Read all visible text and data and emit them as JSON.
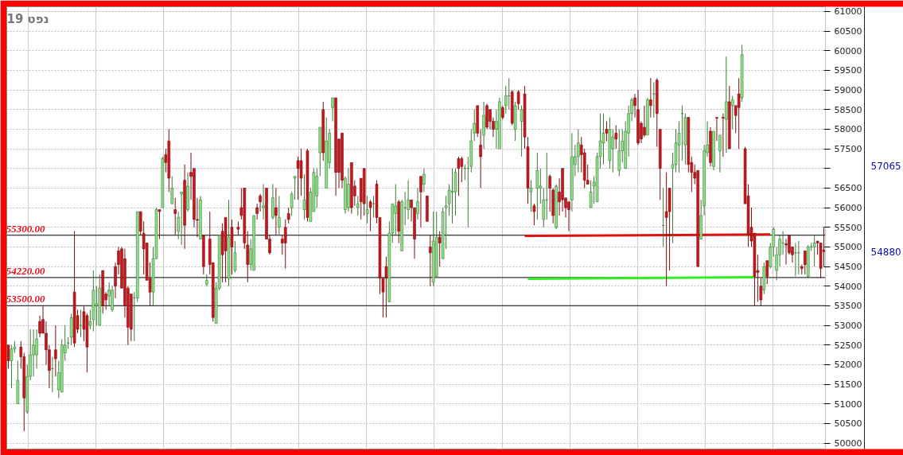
{
  "chart_data": {
    "type": "candlestick",
    "title": "19 נפט",
    "categories": [
      null,
      null,
      null,
      null,
      null,
      null,
      null,
      null,
      null,
      null,
      null,
      null,
      null,
      null,
      null,
      null,
      null,
      null,
      null,
      null,
      null,
      null,
      null,
      null,
      null,
      null,
      null,
      null,
      null,
      null,
      null,
      null,
      null,
      null,
      null,
      null,
      null,
      null,
      null,
      null,
      null,
      null,
      null,
      null,
      null,
      null,
      null,
      null,
      null,
      null,
      null,
      null,
      null,
      null,
      null,
      null,
      null,
      null,
      null,
      null,
      null,
      null,
      null,
      null,
      null,
      null,
      null,
      null,
      null,
      null,
      null,
      null,
      null,
      null,
      null,
      null,
      null,
      null,
      null,
      null,
      null,
      null,
      null,
      null,
      null,
      null,
      null,
      null,
      null,
      null,
      null,
      null,
      null,
      null,
      null,
      null,
      null,
      null,
      null,
      null,
      null,
      null,
      null,
      null,
      null,
      null,
      null,
      null,
      null,
      null,
      null,
      null,
      null,
      null,
      null,
      null,
      null,
      null,
      null,
      null,
      null,
      null,
      null,
      null,
      null,
      null,
      null,
      null,
      null,
      null,
      null,
      null,
      null,
      null,
      null,
      null,
      null,
      null,
      null,
      null,
      null,
      null,
      null,
      null,
      null,
      null,
      null,
      null,
      null,
      null,
      null,
      null,
      null,
      null,
      null,
      null,
      null,
      null,
      null,
      null,
      null,
      null,
      null,
      null,
      null,
      null,
      null,
      null,
      null,
      null,
      null,
      null,
      null,
      null,
      null,
      null,
      null,
      null,
      null,
      null,
      null,
      null,
      null,
      null,
      null,
      null,
      null,
      null,
      null,
      null,
      null,
      null,
      null,
      null,
      null,
      null,
      null,
      null,
      null,
      null,
      null,
      null,
      null,
      null,
      null,
      null,
      null,
      null,
      null,
      null,
      null,
      null,
      null,
      null,
      null,
      null,
      null,
      null,
      null,
      null,
      null,
      null,
      null,
      null,
      null,
      null,
      null,
      null,
      null,
      null,
      null,
      null,
      null,
      null,
      null,
      null,
      null,
      null,
      null,
      null,
      null,
      null,
      null,
      null,
      null,
      null,
      null,
      null,
      null,
      null,
      null,
      null,
      null,
      null,
      null,
      null,
      null,
      null,
      null,
      null
    ],
    "ohlc": [
      [
        52500,
        52500,
        51900,
        52100
      ],
      [
        52100,
        52500,
        51400,
        52400
      ],
      [
        52400,
        52600,
        52300,
        52450
      ],
      [
        51000,
        52100,
        51000,
        51600
      ],
      [
        52450,
        52600,
        51900,
        52200
      ],
      [
        52200,
        52300,
        50300,
        51150
      ],
      [
        50800,
        52000,
        50750,
        51700
      ],
      [
        51700,
        52900,
        51600,
        52250
      ],
      [
        52250,
        52900,
        51700,
        52500
      ],
      [
        52250,
        52900,
        51900,
        52650
      ],
      [
        53100,
        53250,
        52700,
        52800
      ],
      [
        53150,
        53500,
        52800,
        52800
      ],
      [
        52800,
        53100,
        52000,
        52380
      ],
      [
        52380,
        52500,
        51400,
        51850
      ],
      [
        51900,
        52200,
        51300,
        51900
      ],
      [
        52380,
        53000,
        51700,
        52150
      ],
      [
        51360,
        52100,
        51150,
        51800
      ],
      [
        51300,
        52650,
        51300,
        52500
      ],
      [
        52300,
        53000,
        52100,
        52500
      ],
      [
        52550,
        52700,
        52400,
        52550
      ],
      [
        52700,
        53300,
        52500,
        53200
      ],
      [
        53850,
        55400,
        52450,
        52550
      ],
      [
        53250,
        53400,
        52800,
        52900
      ],
      [
        53000,
        53400,
        52700,
        53000
      ],
      [
        53350,
        53500,
        52600,
        52900
      ],
      [
        53250,
        53300,
        51800,
        52450
      ],
      [
        53000,
        53400,
        52900,
        53100
      ],
      [
        53150,
        54400,
        52850,
        53900
      ],
      [
        53500,
        54000,
        53000,
        53550
      ],
      [
        53000,
        54300,
        53000,
        53950
      ],
      [
        54400,
        54400,
        53300,
        53500
      ],
      [
        53800,
        53850,
        53400,
        53650
      ],
      [
        53750,
        54100,
        53500,
        53900
      ],
      [
        53400,
        54000,
        53350,
        53900
      ],
      [
        54500,
        54600,
        53700,
        54000
      ],
      [
        54900,
        55000,
        54300,
        54550
      ],
      [
        54950,
        55000,
        53950,
        53950
      ],
      [
        54700,
        54950,
        53200,
        53500
      ],
      [
        53950,
        54000,
        52500,
        52950
      ],
      [
        53800,
        53800,
        52600,
        52900
      ],
      [
        53700,
        53850,
        52600,
        53700
      ],
      [
        53700,
        55900,
        53600,
        55900
      ],
      [
        55900,
        55900,
        55300,
        55400
      ],
      [
        55350,
        55650,
        54300,
        54950
      ],
      [
        55100,
        55100,
        54150,
        54150
      ],
      [
        54200,
        54600,
        53500,
        53850
      ],
      [
        53850,
        55000,
        53500,
        54700
      ],
      [
        54700,
        56000,
        54700,
        55950
      ],
      [
        55950,
        55950,
        55200,
        55900
      ],
      [
        56000,
        57300,
        56000,
        57250
      ],
      [
        57350,
        57500,
        56900,
        57150
      ],
      [
        57700,
        58000,
        56400,
        56750
      ],
      [
        56100,
        56800,
        56100,
        56500
      ],
      [
        55950,
        56250,
        55300,
        55850
      ],
      [
        55400,
        55900,
        55200,
        55750
      ],
      [
        56350,
        56400,
        55050,
        56400
      ],
      [
        56700,
        57100,
        54950,
        55550
      ],
      [
        55950,
        56900,
        55900,
        56550
      ],
      [
        56900,
        57400,
        56200,
        56800
      ],
      [
        57000,
        57000,
        55500,
        55700
      ],
      [
        55700,
        56250,
        55250,
        55680
      ],
      [
        55200,
        56300,
        55200,
        56200
      ],
      [
        55300,
        55300,
        54300,
        54500
      ],
      [
        54050,
        54300,
        54000,
        54150
      ],
      [
        55200,
        55900,
        54300,
        54550
      ],
      [
        54600,
        54600,
        53100,
        53200
      ],
      [
        53050,
        54100,
        53050,
        53950
      ],
      [
        53950,
        55300,
        53900,
        55300
      ],
      [
        55400,
        55600,
        54100,
        54800
      ],
      [
        55750,
        55750,
        54100,
        54900
      ],
      [
        54200,
        56200,
        54000,
        55250
      ],
      [
        55500,
        55700,
        54300,
        55000
      ],
      [
        54400,
        55150,
        54350,
        54850
      ],
      [
        55500,
        55650,
        55300,
        55450
      ],
      [
        56000,
        56500,
        55700,
        55800
      ],
      [
        56500,
        56500,
        54950,
        55100
      ],
      [
        55050,
        55400,
        54100,
        54550
      ],
      [
        54550,
        55200,
        54400,
        54950
      ],
      [
        54400,
        55800,
        54400,
        55800
      ],
      [
        56000,
        56100,
        55700,
        55850
      ],
      [
        56300,
        56350,
        55900,
        56150
      ],
      [
        56000,
        56600,
        55700,
        56050
      ],
      [
        56500,
        56500,
        55200,
        55200
      ],
      [
        55200,
        55300,
        54800,
        54850
      ],
      [
        55750,
        56600,
        55700,
        56250
      ],
      [
        56000,
        56500,
        55300,
        55800
      ],
      [
        55500,
        56300,
        55300,
        55750
      ],
      [
        55200,
        55300,
        54800,
        55100
      ],
      [
        55500,
        55700,
        54450,
        55100
      ],
      [
        55850,
        56000,
        55600,
        55700
      ],
      [
        56000,
        56400,
        55800,
        56350
      ],
      [
        56750,
        56800,
        56200,
        56800
      ],
      [
        57200,
        57300,
        56200,
        57000
      ],
      [
        57200,
        57500,
        56300,
        56750
      ],
      [
        55950,
        56850,
        55700,
        56200
      ],
      [
        57450,
        57500,
        55650,
        55750
      ],
      [
        55650,
        56500,
        55650,
        56400
      ],
      [
        55900,
        57000,
        55900,
        56900
      ],
      [
        56300,
        57000,
        56000,
        56800
      ],
      [
        57400,
        58050,
        56800,
        58050
      ],
      [
        58500,
        58700,
        57200,
        57400
      ],
      [
        56500,
        58300,
        56500,
        57700
      ],
      [
        57150,
        58000,
        57000,
        57900
      ],
      [
        58550,
        58800,
        58200,
        58800
      ],
      [
        58800,
        58800,
        56300,
        56900
      ],
      [
        57750,
        57750,
        56500,
        56900
      ],
      [
        57900,
        57900,
        56500,
        56700
      ],
      [
        55950,
        56800,
        55850,
        56750
      ],
      [
        56000,
        57000,
        55900,
        56600
      ],
      [
        57150,
        57150,
        55850,
        56000
      ],
      [
        56550,
        56700,
        56050,
        56300
      ],
      [
        56000,
        56300,
        55800,
        56100
      ],
      [
        56750,
        56750,
        55700,
        56150
      ],
      [
        57000,
        57000,
        55800,
        56100
      ],
      [
        55850,
        56300,
        55600,
        55950
      ],
      [
        56150,
        56200,
        55400,
        56000
      ],
      [
        56100,
        56300,
        55750,
        56100
      ],
      [
        56600,
        56700,
        55600,
        55750
      ],
      [
        55750,
        55750,
        53800,
        54200
      ],
      [
        54200,
        54200,
        53200,
        53850
      ],
      [
        54500,
        54750,
        53200,
        54200
      ],
      [
        53600,
        55650,
        53600,
        55350
      ],
      [
        55350,
        56100,
        55100,
        56100
      ],
      [
        55850,
        56600,
        55300,
        56050
      ],
      [
        56150,
        56200,
        55100,
        55400
      ],
      [
        54900,
        56200,
        54900,
        56150
      ],
      [
        56000,
        56400,
        55550,
        56000
      ],
      [
        55950,
        56700,
        55700,
        56200
      ],
      [
        56200,
        56200,
        55650,
        56000
      ],
      [
        56000,
        56000,
        54700,
        55200
      ],
      [
        55850,
        56500,
        55700,
        56150
      ],
      [
        56800,
        56800,
        55500,
        56400
      ],
      [
        56600,
        57000,
        56400,
        56850
      ],
      [
        56300,
        56300,
        55650,
        55650
      ],
      [
        55000,
        55300,
        54000,
        54850
      ],
      [
        54100,
        55900,
        54000,
        55150
      ],
      [
        54250,
        55900,
        54250,
        55250
      ],
      [
        55250,
        55400,
        54500,
        55100
      ],
      [
        54700,
        56000,
        54700,
        55900
      ],
      [
        56000,
        56300,
        54950,
        56050
      ],
      [
        56100,
        56600,
        55800,
        56450
      ],
      [
        56400,
        57000,
        55600,
        56420
      ],
      [
        56400,
        57000,
        55800,
        56900
      ],
      [
        57250,
        57300,
        56300,
        57000
      ],
      [
        57250,
        57300,
        56650,
        57050
      ],
      [
        57000,
        57100,
        56700,
        57000
      ],
      [
        57000,
        57300,
        55500,
        57000
      ],
      [
        57050,
        58000,
        56900,
        57700
      ],
      [
        57900,
        58500,
        57700,
        58150
      ],
      [
        58600,
        58600,
        57800,
        57900
      ],
      [
        57600,
        58000,
        56500,
        57300
      ],
      [
        57850,
        58700,
        57500,
        58350
      ],
      [
        58600,
        58650,
        58000,
        58050
      ],
      [
        58500,
        58500,
        58000,
        58200
      ],
      [
        58200,
        58300,
        57800,
        58000
      ],
      [
        58000,
        58500,
        57500,
        58200
      ],
      [
        57500,
        58800,
        57500,
        58700
      ],
      [
        58550,
        58600,
        58250,
        58300
      ],
      [
        58600,
        59100,
        58400,
        58850
      ],
      [
        58850,
        59300,
        58500,
        58850
      ],
      [
        58950,
        59000,
        58100,
        58150
      ],
      [
        58000,
        58700,
        57700,
        58600
      ],
      [
        58950,
        59000,
        58500,
        58650
      ],
      [
        58200,
        58600,
        57300,
        58500
      ],
      [
        58900,
        59100,
        57500,
        57800
      ],
      [
        57550,
        57800,
        56100,
        56500
      ],
      [
        56400,
        56700,
        55900,
        56500
      ],
      [
        56050,
        56100,
        55550,
        55900
      ],
      [
        56500,
        57400,
        55700,
        56950
      ],
      [
        56500,
        57000,
        56100,
        56550
      ],
      [
        55700,
        56500,
        55500,
        56200
      ],
      [
        56200,
        57400,
        55700,
        56200
      ],
      [
        56800,
        56850,
        55900,
        56500
      ],
      [
        56450,
        56500,
        55600,
        55800
      ],
      [
        55500,
        56600,
        55450,
        56550
      ],
      [
        56400,
        56750,
        55800,
        56150
      ],
      [
        57000,
        57000,
        55900,
        56200
      ],
      [
        56250,
        56250,
        55750,
        56000
      ],
      [
        56150,
        56150,
        55400,
        55950
      ],
      [
        56200,
        57900,
        55900,
        57300
      ],
      [
        57100,
        57600,
        56800,
        57300
      ],
      [
        57300,
        58000,
        56900,
        57650
      ],
      [
        57600,
        57800,
        56900,
        57350
      ],
      [
        57400,
        57500,
        56500,
        56700
      ],
      [
        56700,
        57100,
        56600,
        56600
      ],
      [
        56000,
        56700,
        56000,
        56400
      ],
      [
        56550,
        56800,
        56100,
        56650
      ],
      [
        56150,
        57400,
        56150,
        57300
      ],
      [
        57300,
        58400,
        57000,
        57700
      ],
      [
        57650,
        58400,
        57100,
        57900
      ],
      [
        58000,
        58200,
        57700,
        57900
      ],
      [
        57200,
        58300,
        57000,
        58000
      ],
      [
        57500,
        58000,
        56900,
        57800
      ],
      [
        57900,
        58100,
        57500,
        57750
      ],
      [
        56950,
        58000,
        56800,
        57450
      ],
      [
        57450,
        58000,
        57150,
        57700
      ],
      [
        57000,
        58200,
        57000,
        57950
      ],
      [
        57900,
        58600,
        57300,
        58400
      ],
      [
        58400,
        58800,
        58200,
        58750
      ],
      [
        58800,
        58900,
        58300,
        58600
      ],
      [
        58500,
        59000,
        57600,
        57650
      ],
      [
        58150,
        58200,
        57650,
        57750
      ],
      [
        58050,
        58600,
        57800,
        57850
      ],
      [
        57850,
        58800,
        57850,
        58750
      ],
      [
        58750,
        59300,
        58300,
        58600
      ],
      [
        58900,
        59200,
        58300,
        58900
      ],
      [
        59250,
        59300,
        57550,
        58400
      ],
      [
        58000,
        58000,
        56200,
        57000
      ],
      [
        55550,
        56500,
        55000,
        55550
      ],
      [
        55900,
        56900,
        54000,
        55750
      ],
      [
        56500,
        56500,
        54400,
        55900
      ],
      [
        57000,
        57400,
        55100,
        57100
      ],
      [
        57100,
        58000,
        56900,
        57650
      ],
      [
        57600,
        58200,
        56900,
        57900
      ],
      [
        58400,
        58600,
        57200,
        58400
      ],
      [
        57600,
        58400,
        57100,
        58300
      ],
      [
        58300,
        58300,
        56900,
        57100
      ],
      [
        57150,
        57300,
        56400,
        56900
      ],
      [
        56900,
        57100,
        56600,
        56750
      ],
      [
        56950,
        56950,
        54500,
        54500
      ],
      [
        55200,
        56200,
        55200,
        55800
      ],
      [
        56050,
        57600,
        55800,
        57450
      ],
      [
        57400,
        58200,
        57300,
        57600
      ],
      [
        57950,
        58050,
        57050,
        57150
      ],
      [
        57050,
        57950,
        56950,
        57950
      ],
      [
        58300,
        58300,
        57700,
        58280
      ],
      [
        57450,
        57850,
        56900,
        57850
      ],
      [
        58300,
        58400,
        57300,
        58280
      ],
      [
        58250,
        59850,
        57400,
        58700
      ],
      [
        58700,
        59100,
        57500,
        57500
      ],
      [
        58600,
        58850,
        58000,
        58750
      ],
      [
        58600,
        58600,
        57900,
        58350
      ],
      [
        58900,
        59300,
        57500,
        58550
      ],
      [
        58800,
        60150,
        58700,
        59900
      ],
      [
        57500,
        57550,
        56100,
        56100
      ],
      [
        56300,
        56600,
        55000,
        55300
      ],
      [
        55500,
        56000,
        55000,
        55150
      ],
      [
        55350,
        55350,
        53500,
        54250
      ],
      [
        54400,
        54800,
        53600,
        54350
      ],
      [
        54000,
        54200,
        53500,
        53650
      ],
      [
        53900,
        54600,
        53800,
        54500
      ],
      [
        54650,
        54650,
        54050,
        54250
      ],
      [
        54500,
        55100,
        54450,
        55000
      ],
      [
        55000,
        55500,
        54750,
        55450
      ],
      [
        54400,
        55000,
        54150,
        54800
      ],
      [
        54800,
        55300,
        54500,
        55200
      ],
      [
        55100,
        55400,
        54800,
        55100
      ],
      [
        55080,
        55200,
        54550,
        55050
      ],
      [
        55300,
        55300,
        54800,
        54850
      ],
      [
        55000,
        55000,
        54600,
        54800
      ],
      [
        54850,
        55100,
        54250,
        54850
      ],
      [
        54850,
        55150,
        54300,
        54850
      ],
      [
        54500,
        54550,
        54300,
        54450
      ],
      [
        54900,
        54900,
        54300,
        54550
      ],
      [
        54250,
        55050,
        54200,
        55000
      ],
      [
        55000,
        55100,
        54900,
        55000
      ],
      [
        55000,
        55300,
        54500,
        55100
      ],
      [
        55150,
        55150,
        54800,
        55100
      ],
      [
        55100,
        55100,
        54200,
        54450
      ],
      [
        54920,
        55500,
        54500,
        54880
      ]
    ],
    "series": [
      {
        "type": "line",
        "color": "#e01010",
        "values": [
          null,
          null,
          null,
          null,
          null,
          null,
          null,
          null,
          null,
          null,
          null,
          null,
          null,
          null,
          null,
          null,
          null,
          null,
          null,
          null,
          null,
          null,
          null,
          null,
          null,
          null,
          null,
          null,
          null,
          null,
          null,
          null,
          null,
          null,
          null,
          null,
          null,
          null,
          null,
          null,
          null,
          null,
          null,
          null,
          null,
          null,
          null,
          null,
          null,
          null,
          null,
          null,
          null,
          null,
          null,
          null,
          null,
          null,
          null,
          null,
          null,
          null,
          null,
          null,
          null,
          null,
          null,
          null,
          null,
          null,
          null,
          null,
          null,
          null,
          null,
          null,
          null,
          null,
          null,
          null,
          null,
          null,
          null,
          null,
          null,
          null,
          null,
          null,
          null,
          null,
          null,
          null,
          null,
          null,
          null,
          null,
          null,
          null,
          null,
          null,
          null,
          null,
          null,
          null,
          null,
          null,
          null,
          null,
          null,
          null,
          null,
          null,
          null,
          null,
          null,
          null,
          null,
          null,
          null,
          null,
          null,
          null,
          null,
          null,
          null,
          null,
          null,
          null,
          null,
          null,
          null,
          null,
          null,
          null,
          null,
          null,
          null,
          null,
          null,
          null,
          null,
          null,
          null,
          null,
          null,
          null,
          null,
          null,
          null,
          null,
          null,
          null,
          null,
          null,
          null,
          null,
          null,
          null,
          null,
          null,
          null,
          null,
          null,
          null,
          55280,
          null,
          null,
          null,
          null,
          null,
          null,
          null,
          null,
          null,
          null,
          null,
          null,
          null,
          null,
          null,
          null,
          null,
          null,
          null,
          null,
          null,
          null,
          null,
          null,
          null,
          null,
          null,
          null,
          null,
          null,
          null,
          null,
          null,
          null,
          null,
          null,
          null,
          null,
          null,
          null,
          null,
          null,
          null,
          null,
          null,
          null,
          null,
          null,
          null,
          null,
          null,
          null,
          null,
          null,
          null,
          null,
          null,
          null,
          null,
          null,
          null,
          null,
          null,
          null,
          null,
          null,
          null,
          null,
          null,
          null,
          null,
          null,
          null,
          null,
          null,
          null,
          null,
          55320,
          null,
          null,
          null,
          null,
          null,
          null,
          null,
          null,
          null,
          null,
          null,
          null,
          null,
          null,
          null,
          null,
          null
        ]
      },
      {
        "type": "line",
        "color": "#33ee22",
        "values": [
          null,
          null,
          null,
          null,
          null,
          null,
          null,
          null,
          null,
          null,
          null,
          null,
          null,
          null,
          null,
          null,
          null,
          null,
          null,
          null,
          null,
          null,
          null,
          null,
          null,
          null,
          null,
          null,
          null,
          null,
          null,
          null,
          null,
          null,
          null,
          null,
          null,
          null,
          null,
          null,
          null,
          null,
          null,
          null,
          null,
          null,
          null,
          null,
          null,
          null,
          null,
          null,
          null,
          null,
          null,
          null,
          null,
          null,
          null,
          null,
          null,
          null,
          null,
          null,
          null,
          null,
          null,
          null,
          null,
          null,
          null,
          null,
          null,
          null,
          null,
          null,
          null,
          null,
          null,
          null,
          null,
          null,
          null,
          null,
          null,
          null,
          null,
          null,
          null,
          null,
          null,
          null,
          null,
          null,
          null,
          null,
          null,
          null,
          null,
          null,
          null,
          null,
          null,
          null,
          null,
          null,
          null,
          null,
          null,
          null,
          null,
          null,
          null,
          null,
          null,
          null,
          null,
          null,
          null,
          null,
          null,
          null,
          null,
          null,
          null,
          null,
          null,
          null,
          null,
          null,
          null,
          null,
          null,
          null,
          null,
          null,
          null,
          null,
          null,
          null,
          null,
          null,
          null,
          null,
          null,
          null,
          null,
          null,
          null,
          null,
          null,
          null,
          null,
          null,
          null,
          null,
          null,
          null,
          null,
          null,
          null,
          null,
          null,
          null,
          null,
          54190,
          null,
          null,
          null,
          null,
          null,
          null,
          null,
          null,
          null,
          null,
          null,
          null,
          null,
          null,
          null,
          null,
          null,
          null,
          null,
          null,
          null,
          null,
          null,
          null,
          null,
          null,
          null,
          null,
          null,
          null,
          null,
          null,
          null,
          null,
          null,
          null,
          null,
          null,
          null,
          null,
          null,
          null,
          null,
          null,
          null,
          null,
          null,
          null,
          null,
          null,
          null,
          null,
          null,
          null,
          null,
          null,
          null,
          null,
          null,
          null,
          null,
          null,
          null,
          null,
          null,
          null,
          null,
          null,
          null,
          null,
          null,
          54230,
          null,
          null,
          null,
          null,
          null,
          null,
          null,
          null,
          null,
          null,
          null,
          null,
          null,
          null,
          null,
          null,
          null,
          null,
          null,
          null,
          null,
          null
        ]
      }
    ],
    "ylim": [
      49850,
      61120
    ],
    "yticks": [
      50000,
      50500,
      51000,
      51500,
      52000,
      52500,
      53000,
      53500,
      54000,
      54500,
      55000,
      55500,
      56000,
      56500,
      {
        "value": 57000,
        "label": null
      },
      57500,
      58000,
      58500,
      59000,
      59500,
      60000,
      60500,
      61000
    ],
    "ref_lines": [
      {
        "axis": "y",
        "value": 55300,
        "label": "55300.00",
        "color": "#333333"
      },
      {
        "axis": "y",
        "value": 54220,
        "label": "54220.00",
        "color": "#333333"
      },
      {
        "axis": "y",
        "value": 53500,
        "label": "53500.00",
        "color": "#333333"
      }
    ],
    "annotations": [
      "57065",
      "54880"
    ],
    "grid": true,
    "tick_labels": "y"
  }
}
